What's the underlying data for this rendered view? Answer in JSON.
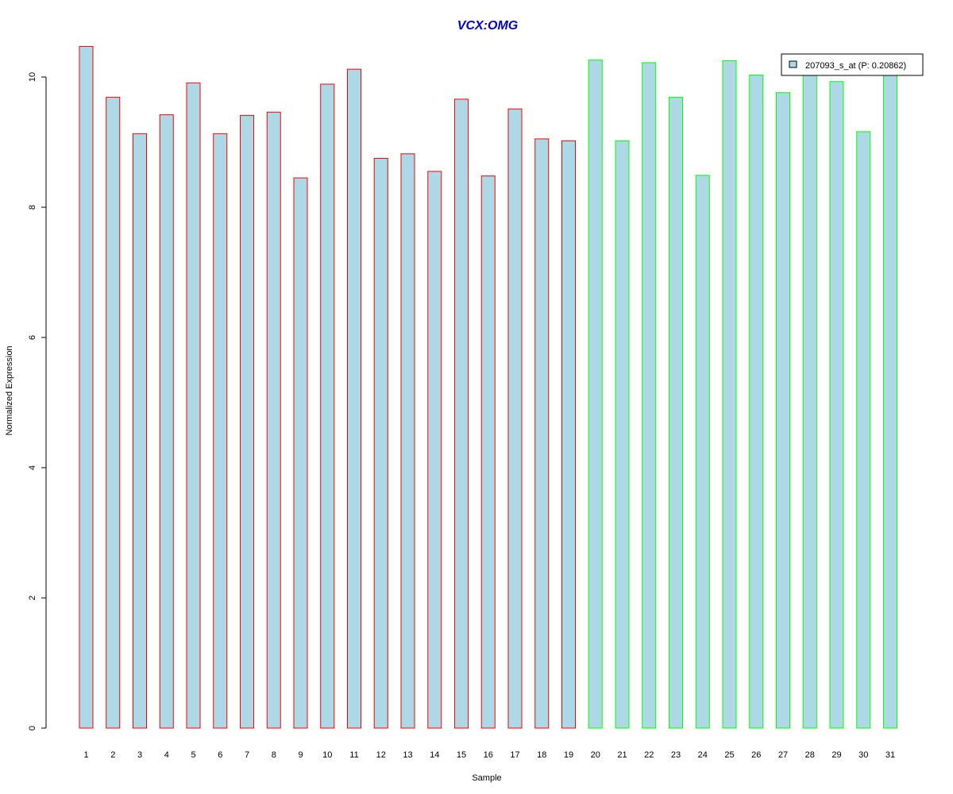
{
  "chart_data": {
    "type": "bar",
    "title": "VCX:OMG",
    "xlabel": "Sample",
    "ylabel": "Normalized Expression",
    "ylim": [
      0,
      10.5
    ],
    "yticks": [
      0,
      2,
      4,
      6,
      8,
      10
    ],
    "grid": false,
    "legend_position": "top-right",
    "categories": [
      "1",
      "2",
      "3",
      "4",
      "5",
      "6",
      "7",
      "8",
      "9",
      "10",
      "11",
      "12",
      "13",
      "14",
      "15",
      "16",
      "17",
      "18",
      "19",
      "20",
      "21",
      "22",
      "23",
      "24",
      "25",
      "26",
      "27",
      "28",
      "29",
      "30",
      "31"
    ],
    "series": [
      {
        "name": "207093_s_at (P: 0.20862)",
        "values": [
          10.47,
          9.69,
          9.13,
          9.42,
          9.91,
          9.13,
          9.41,
          9.46,
          8.45,
          9.89,
          10.12,
          8.75,
          8.82,
          8.55,
          9.66,
          8.48,
          9.51,
          9.05,
          9.02,
          10.26,
          9.02,
          10.22,
          9.69,
          8.49,
          10.25,
          10.03,
          9.76,
          10.03,
          9.93,
          9.16,
          10.03
        ]
      }
    ],
    "groups": [
      "1",
      "1",
      "1",
      "1",
      "1",
      "1",
      "1",
      "1",
      "1",
      "1",
      "1",
      "1",
      "1",
      "1",
      "1",
      "1",
      "1",
      "1",
      "1",
      "2",
      "2",
      "2",
      "2",
      "2",
      "2",
      "2",
      "2",
      "2",
      "2",
      "2",
      "2"
    ]
  },
  "colors": {
    "title": "#0000CD",
    "bar_fill": "#ADD8E6",
    "group_1_border": "#FF0000",
    "group_2_border": "#00FF00",
    "axis": "#000000"
  }
}
